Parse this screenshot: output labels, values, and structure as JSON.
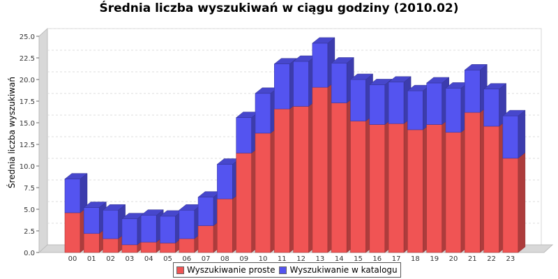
{
  "chart_data": {
    "type": "bar",
    "stacked": true,
    "three_d": true,
    "title": "Średnia liczba wyszukiwań w ciągu godziny (2010.02)",
    "ylabel": "Średnia liczba wyszukiwań",
    "xlabel": "",
    "ylim": [
      0,
      25
    ],
    "yticks": [
      "0.0",
      "2.5",
      "5.0",
      "7.5",
      "10.0",
      "12.5",
      "15.0",
      "17.5",
      "20.0",
      "22.5",
      "25.0"
    ],
    "categories": [
      "00",
      "01",
      "02",
      "03",
      "04",
      "05",
      "06",
      "07",
      "08",
      "09",
      "10",
      "11",
      "12",
      "13",
      "14",
      "15",
      "16",
      "17",
      "18",
      "19",
      "20",
      "21",
      "22",
      "23"
    ],
    "series": [
      {
        "name": "Wyszukiwanie proste",
        "color": "#f05454",
        "values": [
          4.6,
          2.2,
          1.6,
          0.9,
          1.2,
          1.1,
          1.6,
          3.1,
          6.2,
          11.5,
          13.8,
          16.6,
          16.9,
          19.1,
          17.3,
          15.2,
          14.8,
          14.9,
          14.2,
          14.8,
          13.9,
          16.2,
          14.6,
          10.9
        ]
      },
      {
        "name": "Wyszukiwanie w katalogu",
        "color": "#5454f0",
        "values": [
          3.9,
          3.0,
          3.3,
          3.0,
          3.1,
          3.1,
          3.3,
          3.3,
          4.0,
          4.1,
          4.6,
          5.2,
          5.2,
          5.1,
          4.6,
          4.8,
          4.6,
          4.8,
          4.5,
          4.8,
          5.1,
          4.9,
          4.3,
          4.9
        ]
      }
    ],
    "grid": true,
    "legend": "bottom-center"
  }
}
